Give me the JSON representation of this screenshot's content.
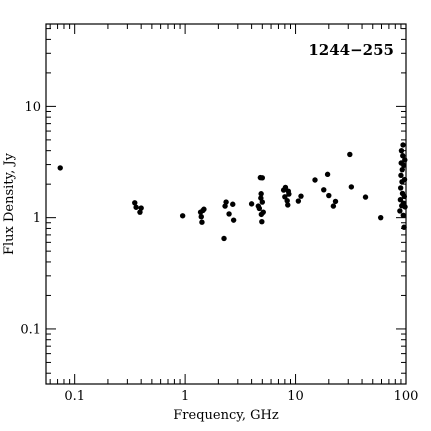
{
  "chart_data": {
    "type": "scatter",
    "title": "1244−255",
    "xlabel": "Frequency, GHz",
    "ylabel": "Flux Density, Jy",
    "x_scale": "log",
    "y_scale": "log",
    "xlim": [
      0.055,
      100
    ],
    "ylim": [
      0.032,
      55
    ],
    "grid": false,
    "x_major_ticks": [
      {
        "value": 0.1,
        "label": "0.1"
      },
      {
        "value": 1,
        "label": "1"
      },
      {
        "value": 10,
        "label": "10"
      },
      {
        "value": 100,
        "label": "100"
      }
    ],
    "y_major_ticks": [
      {
        "value": 0.1,
        "label": "0.1"
      },
      {
        "value": 1,
        "label": "1"
      },
      {
        "value": 10,
        "label": "10"
      }
    ],
    "points": [
      [
        0.074,
        2.8
      ],
      [
        0.35,
        1.36
      ],
      [
        0.36,
        1.24
      ],
      [
        0.39,
        1.12
      ],
      [
        0.4,
        1.22
      ],
      [
        0.95,
        1.04
      ],
      [
        1.38,
        1.12
      ],
      [
        1.4,
        1.02
      ],
      [
        1.42,
        0.91
      ],
      [
        1.45,
        1.16
      ],
      [
        1.48,
        1.19
      ],
      [
        2.25,
        0.65
      ],
      [
        2.3,
        1.27
      ],
      [
        2.35,
        1.38
      ],
      [
        2.5,
        1.08
      ],
      [
        2.7,
        1.32
      ],
      [
        2.75,
        0.95
      ],
      [
        4.0,
        1.33
      ],
      [
        4.6,
        1.27
      ],
      [
        4.7,
        1.21
      ],
      [
        4.8,
        2.29
      ],
      [
        4.85,
        1.5
      ],
      [
        4.88,
        1.64
      ],
      [
        4.9,
        1.07
      ],
      [
        4.95,
        0.92
      ],
      [
        5.0,
        1.38
      ],
      [
        5.0,
        2.28
      ],
      [
        5.1,
        1.12
      ],
      [
        7.8,
        1.77
      ],
      [
        8.0,
        1.54
      ],
      [
        8.1,
        1.87
      ],
      [
        8.4,
        1.42
      ],
      [
        8.5,
        1.3
      ],
      [
        8.6,
        1.73
      ],
      [
        8.7,
        1.63
      ],
      [
        10.6,
        1.41
      ],
      [
        11.2,
        1.56
      ],
      [
        15.0,
        2.18
      ],
      [
        18.0,
        1.78
      ],
      [
        19.5,
        2.45
      ],
      [
        20.0,
        1.58
      ],
      [
        22.0,
        1.27
      ],
      [
        23.0,
        1.4
      ],
      [
        31.0,
        3.7
      ],
      [
        32.0,
        1.89
      ],
      [
        43.0,
        1.53
      ],
      [
        59.0,
        1.0
      ],
      [
        88.0,
        1.15
      ],
      [
        89.0,
        1.45
      ],
      [
        89.5,
        1.85
      ],
      [
        90.0,
        2.4
      ],
      [
        90.5,
        3.1
      ],
      [
        91.0,
        4.0
      ],
      [
        91.5,
        1.28
      ],
      [
        92.0,
        2.1
      ],
      [
        92.5,
        2.7
      ],
      [
        93.0,
        1.65
      ],
      [
        93.5,
        3.6
      ],
      [
        94.0,
        4.5
      ],
      [
        94.5,
        1.05
      ],
      [
        95.0,
        1.35
      ],
      [
        95.5,
        2.95
      ],
      [
        96.0,
        0.82
      ],
      [
        96.5,
        1.55
      ],
      [
        97.0,
        2.2
      ],
      [
        97.5,
        3.3
      ],
      [
        98.0,
        1.25
      ]
    ]
  }
}
